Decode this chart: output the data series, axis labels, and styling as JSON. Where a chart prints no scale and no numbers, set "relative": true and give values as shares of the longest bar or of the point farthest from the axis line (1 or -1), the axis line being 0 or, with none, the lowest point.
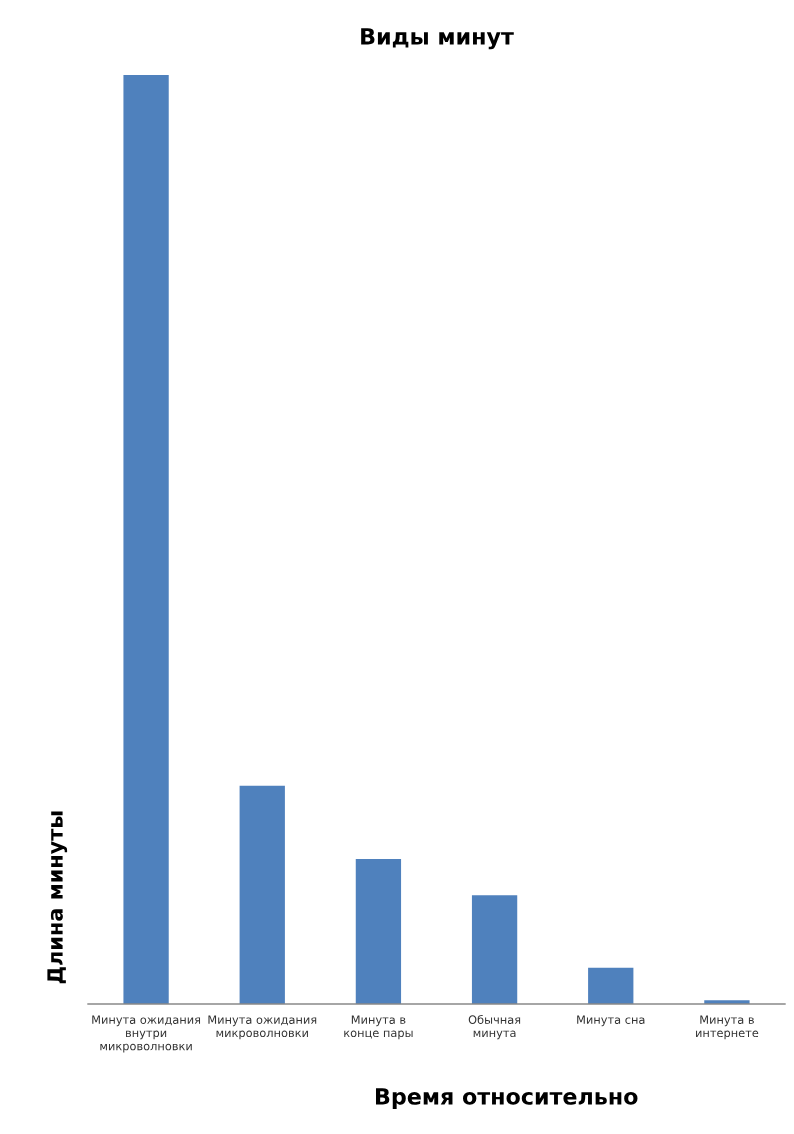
{
  "chart_data": {
    "type": "bar",
    "title": "Виды минут",
    "xlabel": "Время относительно",
    "ylabel": "Длина минуты",
    "categories": [
      "Минута ожидания\nвнутри\nмикроволновки",
      "Минута ожидания\nмикроволновки",
      "Минута в\nконце пары",
      "Обычная\nминута",
      "Минута сна",
      "Минута в\nинтернете"
    ],
    "values": [
      1,
      0.235,
      0.156,
      0.117,
      0.039,
      0.004
    ],
    "color": "#4f81bd",
    "relative": true
  }
}
